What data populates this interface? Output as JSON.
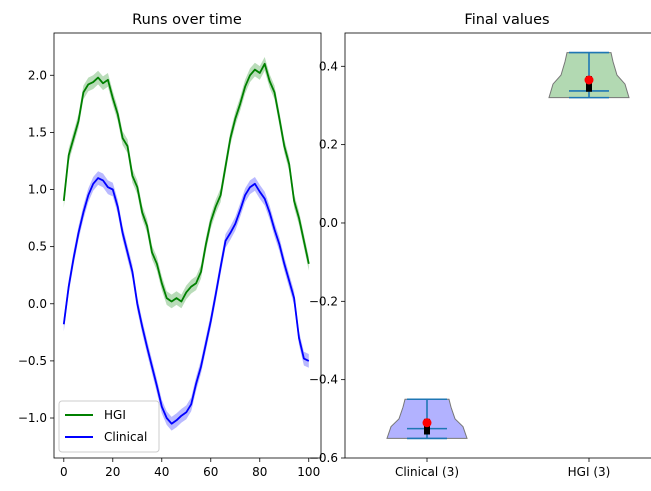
{
  "colors": {
    "hgi": "#008000",
    "clinical": "#0000ff",
    "hgi_fill": "#7fbf7f",
    "clinical_fill": "#7f7fff",
    "violin_stats": "#1f77b4",
    "mean_marker": "#ff0000",
    "box": "#000000"
  },
  "chart_data": [
    {
      "type": "line",
      "title": "Runs over time",
      "xlabel": "",
      "ylabel": "",
      "xlim": [
        -4,
        105
      ],
      "ylim": [
        -1.35,
        2.37
      ],
      "xticks": [
        0,
        20,
        40,
        60,
        80,
        100
      ],
      "yticks": [
        -1.0,
        -0.5,
        0.0,
        0.5,
        1.0,
        1.5,
        2.0
      ],
      "ytick_labels": [
        "−1.0",
        "−0.5",
        "0.0",
        "0.5",
        "1.0",
        "1.5",
        "2.0"
      ],
      "legend": {
        "placement": "lower-left",
        "entries": [
          "HGI",
          "Clinical"
        ]
      },
      "series": [
        {
          "name": "HGI",
          "x": [
            0,
            2,
            4,
            6,
            8,
            10,
            12,
            14,
            16,
            18,
            20,
            22,
            24,
            26,
            28,
            30,
            32,
            34,
            36,
            38,
            40,
            42,
            44,
            46,
            48,
            50,
            52,
            54,
            56,
            58,
            60,
            62,
            64,
            66,
            68,
            70,
            72,
            74,
            76,
            78,
            80,
            82,
            84,
            86,
            88,
            90,
            92,
            94,
            96,
            98,
            100
          ],
          "y": [
            0.9,
            1.3,
            1.45,
            1.6,
            1.85,
            1.92,
            1.94,
            1.98,
            1.93,
            1.96,
            1.8,
            1.66,
            1.45,
            1.38,
            1.12,
            1.02,
            0.8,
            0.68,
            0.45,
            0.35,
            0.18,
            0.05,
            0.02,
            0.05,
            0.02,
            0.1,
            0.15,
            0.18,
            0.28,
            0.52,
            0.72,
            0.85,
            0.95,
            1.2,
            1.45,
            1.62,
            1.75,
            1.9,
            2.0,
            2.05,
            2.02,
            2.1,
            1.95,
            1.85,
            1.62,
            1.38,
            1.22,
            0.9,
            0.75,
            0.55,
            0.35
          ],
          "band": 0.06
        },
        {
          "name": "Clinical",
          "x": [
            0,
            2,
            4,
            6,
            8,
            10,
            12,
            14,
            16,
            18,
            20,
            22,
            24,
            26,
            28,
            30,
            32,
            34,
            36,
            38,
            40,
            42,
            44,
            46,
            48,
            50,
            52,
            54,
            56,
            58,
            60,
            62,
            64,
            66,
            68,
            70,
            72,
            74,
            76,
            78,
            80,
            82,
            84,
            86,
            88,
            90,
            92,
            94,
            96,
            98,
            100
          ],
          "y": [
            -0.18,
            0.15,
            0.4,
            0.62,
            0.8,
            0.95,
            1.05,
            1.1,
            1.08,
            1.02,
            1.0,
            0.85,
            0.62,
            0.45,
            0.28,
            0.0,
            -0.2,
            -0.38,
            -0.55,
            -0.72,
            -0.9,
            -1.0,
            -1.05,
            -1.02,
            -0.98,
            -0.95,
            -0.88,
            -0.7,
            -0.55,
            -0.35,
            -0.15,
            0.08,
            0.32,
            0.55,
            0.62,
            0.7,
            0.82,
            0.95,
            1.02,
            1.05,
            0.98,
            0.92,
            0.8,
            0.65,
            0.52,
            0.35,
            0.2,
            0.05,
            -0.3,
            -0.48,
            -0.5
          ],
          "band": 0.06
        }
      ]
    },
    {
      "type": "violin",
      "title": "Final values",
      "xlabel": "",
      "ylabel": "",
      "categories": [
        "Clinical (3)",
        "HGI (3)"
      ],
      "ylim": [
        -0.6,
        0.485
      ],
      "yticks": [
        -0.6,
        -0.4,
        -0.2,
        0.0,
        0.2,
        0.4
      ],
      "ytick_labels": [
        "−0.6",
        "−0.4",
        "−0.2",
        "0.0",
        "0.2",
        "0.4"
      ],
      "series": [
        {
          "name": "Clinical (3)",
          "min": -0.55,
          "max": -0.45,
          "median": -0.525,
          "mean": -0.51,
          "q1": -0.54,
          "q3": -0.5
        },
        {
          "name": "HGI (3)",
          "min": 0.32,
          "max": 0.435,
          "median": 0.337,
          "mean": 0.365,
          "q1": 0.335,
          "q3": 0.375
        }
      ]
    }
  ]
}
